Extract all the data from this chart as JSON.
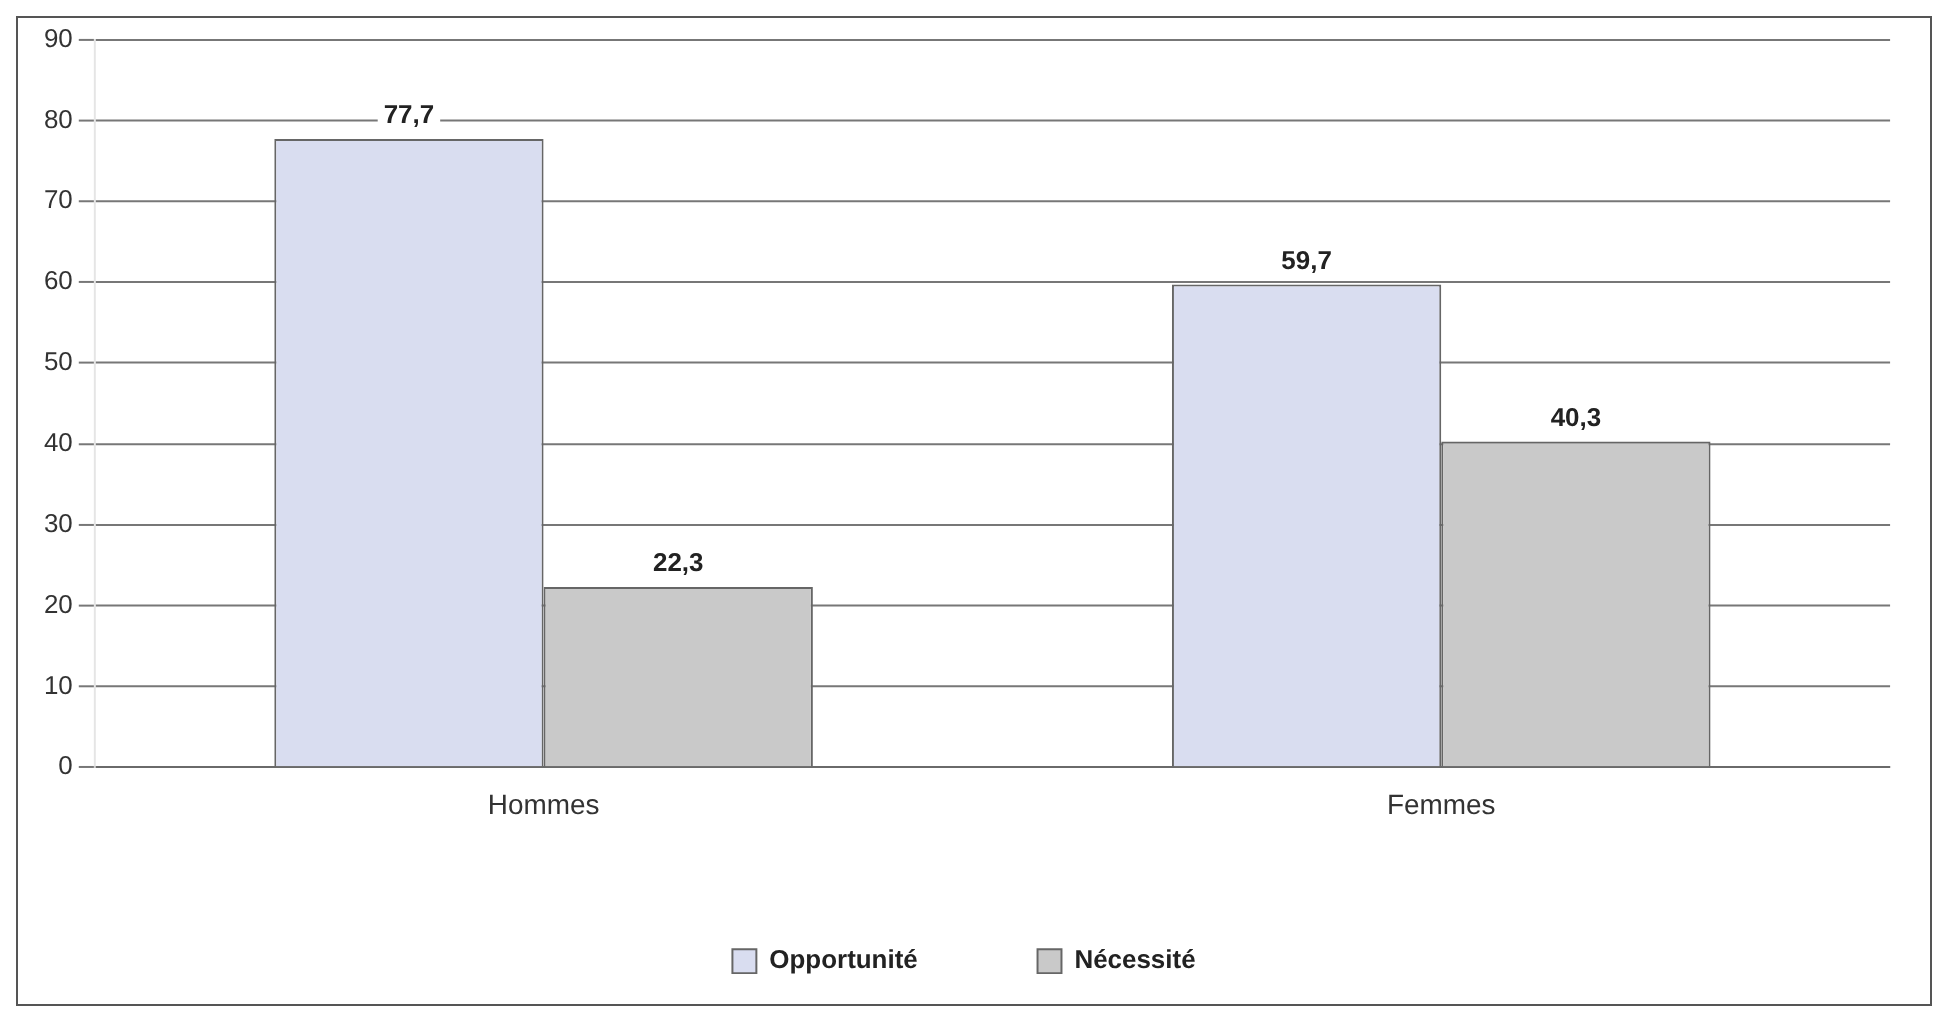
{
  "chart_data": {
    "type": "bar",
    "categories": [
      "Hommes",
      "Femmes"
    ],
    "series": [
      {
        "name": "Opportunité",
        "color": "#d9ddf0",
        "values": [
          77.7,
          59.7
        ],
        "value_labels": [
          "77,7",
          "59,7"
        ]
      },
      {
        "name": "Nécessité",
        "color": "#c9c9c9",
        "values": [
          22.3,
          40.3
        ],
        "value_labels": [
          "22,3",
          "40,3"
        ]
      }
    ],
    "ylim": [
      0,
      90
    ],
    "yticks": [
      0,
      10,
      20,
      30,
      40,
      50,
      60,
      70,
      80,
      90
    ],
    "grid": "y",
    "legend": "bottom"
  }
}
